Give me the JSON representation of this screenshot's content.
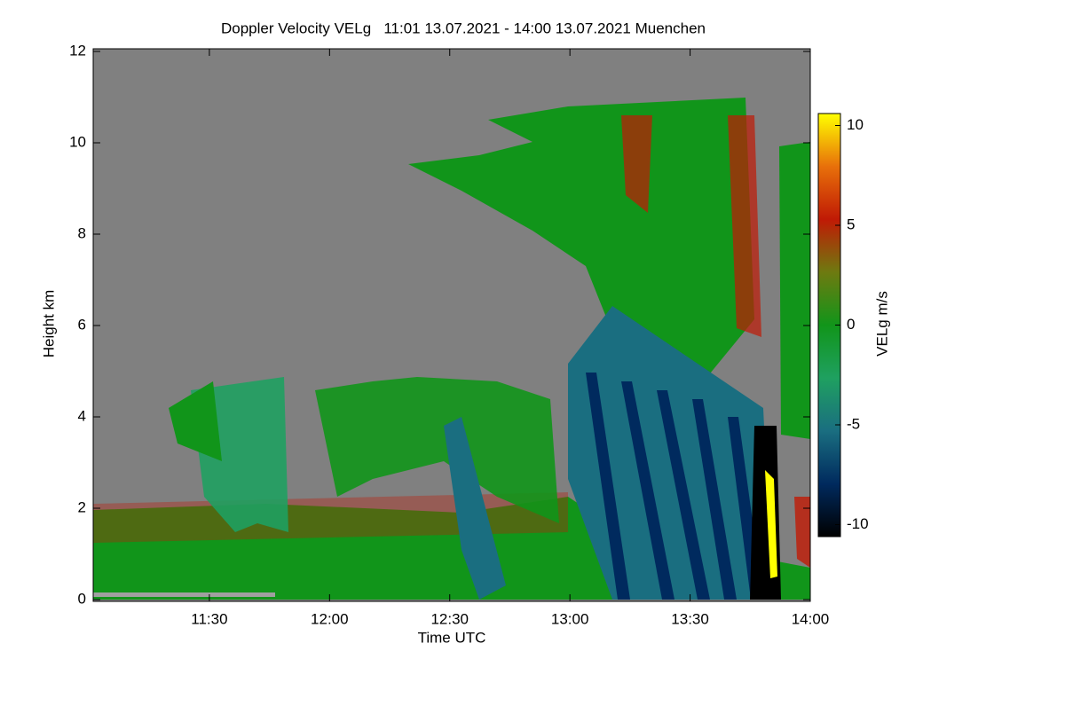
{
  "chart_data": {
    "type": "heatmap",
    "title": "Doppler Velocity VELg   11:01 13.07.2021 - 14:00 13.07.2021 Muenchen",
    "xlabel": "Time UTC",
    "ylabel": "Height km",
    "xlim": [
      661,
      840
    ],
    "xticks": [
      {
        "value": 690,
        "label": "11:30"
      },
      {
        "value": 720,
        "label": "12:00"
      },
      {
        "value": 750,
        "label": "12:30"
      },
      {
        "value": 780,
        "label": "13:00"
      },
      {
        "value": 810,
        "label": "13:30"
      },
      {
        "value": 840,
        "label": "14:00"
      }
    ],
    "ylim": [
      0,
      12
    ],
    "yticks": [
      0,
      2,
      4,
      6,
      8,
      10,
      12
    ],
    "background": "#808080",
    "colorbar": {
      "label": "VELg m/s",
      "lim": [
        -10.6,
        10.6
      ],
      "ticks": [
        -10,
        -5,
        0,
        5,
        10
      ],
      "colors": [
        "#000000",
        "#002a5e",
        "#1a6e80",
        "#1fa060",
        "#11951a",
        "#6e7a10",
        "#c01a05",
        "#e8700a",
        "#ffff00"
      ]
    }
  }
}
